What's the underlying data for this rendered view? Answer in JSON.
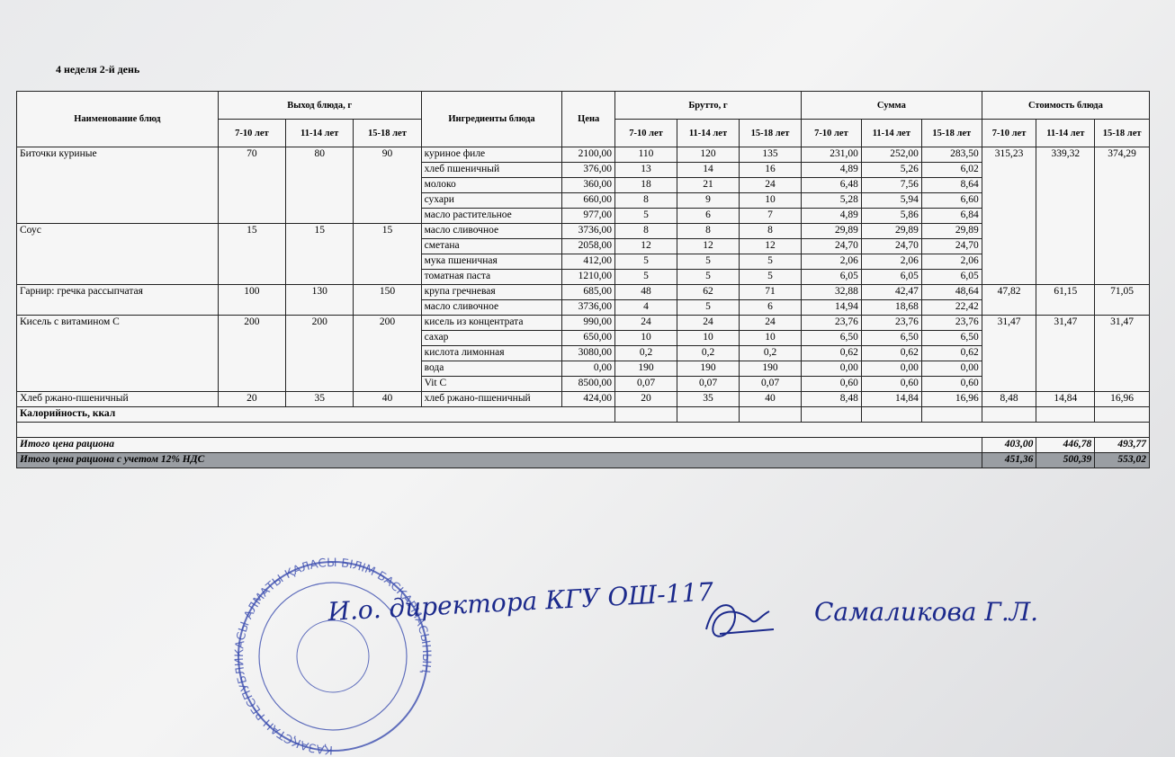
{
  "header": {
    "title": "4 неделя 2-й день"
  },
  "table": {
    "headers": {
      "name": "Наименование блюд",
      "yield": "Выход блюда, г",
      "ingredients": "Ингредиенты блюда",
      "price": "Цена",
      "brutto": "Брутто, г",
      "sum": "Сумма",
      "cost": "Стоимость блюда"
    },
    "age_groups": [
      "7-10 лет",
      "11-14 лет",
      "15-18 лет"
    ],
    "dishes": [
      {
        "name": "Биточки куриные",
        "yield": [
          "70",
          "80",
          "90"
        ],
        "cost": [
          "315,23",
          "339,32",
          "374,29"
        ],
        "ingredients": [
          {
            "name": "куриное филе",
            "price": "2100,00",
            "brutto": [
              "110",
              "120",
              "135"
            ],
            "sum": [
              "231,00",
              "252,00",
              "283,50"
            ]
          },
          {
            "name": "хлеб пшеничный",
            "price": "376,00",
            "brutto": [
              "13",
              "14",
              "16"
            ],
            "sum": [
              "4,89",
              "5,26",
              "6,02"
            ]
          },
          {
            "name": "молоко",
            "price": "360,00",
            "brutto": [
              "18",
              "21",
              "24"
            ],
            "sum": [
              "6,48",
              "7,56",
              "8,64"
            ]
          },
          {
            "name": "сухари",
            "price": "660,00",
            "brutto": [
              "8",
              "9",
              "10"
            ],
            "sum": [
              "5,28",
              "5,94",
              "6,60"
            ]
          },
          {
            "name": "масло растительное",
            "price": "977,00",
            "brutto": [
              "5",
              "6",
              "7"
            ],
            "sum": [
              "4,89",
              "5,86",
              "6,84"
            ]
          }
        ]
      },
      {
        "name": "Соус",
        "yield": [
          "15",
          "15",
          "15"
        ],
        "ingredients": [
          {
            "name": "масло сливочное",
            "price": "3736,00",
            "brutto": [
              "8",
              "8",
              "8"
            ],
            "sum": [
              "29,89",
              "29,89",
              "29,89"
            ]
          },
          {
            "name": "сметана",
            "price": "2058,00",
            "brutto": [
              "12",
              "12",
              "12"
            ],
            "sum": [
              "24,70",
              "24,70",
              "24,70"
            ]
          },
          {
            "name": "мука пшеничная",
            "price": "412,00",
            "brutto": [
              "5",
              "5",
              "5"
            ],
            "sum": [
              "2,06",
              "2,06",
              "2,06"
            ]
          },
          {
            "name": "томатная паста",
            "price": "1210,00",
            "brutto": [
              "5",
              "5",
              "5"
            ],
            "sum": [
              "6,05",
              "6,05",
              "6,05"
            ]
          }
        ]
      },
      {
        "name": "Гарнир: гречка рассыпчатая",
        "yield": [
          "100",
          "130",
          "150"
        ],
        "cost": [
          "47,82",
          "61,15",
          "71,05"
        ],
        "ingredients": [
          {
            "name": "крупа гречневая",
            "price": "685,00",
            "brutto": [
              "48",
              "62",
              "71"
            ],
            "sum": [
              "32,88",
              "42,47",
              "48,64"
            ]
          },
          {
            "name": "масло сливочное",
            "price": "3736,00",
            "brutto": [
              "4",
              "5",
              "6"
            ],
            "sum": [
              "14,94",
              "18,68",
              "22,42"
            ]
          }
        ]
      },
      {
        "name": "Кисель с витамином С",
        "yield": [
          "200",
          "200",
          "200"
        ],
        "cost": [
          "31,47",
          "31,47",
          "31,47"
        ],
        "ingredients": [
          {
            "name": "кисель из концентрата",
            "price": "990,00",
            "brutto": [
              "24",
              "24",
              "24"
            ],
            "sum": [
              "23,76",
              "23,76",
              "23,76"
            ]
          },
          {
            "name": "сахар",
            "price": "650,00",
            "brutto": [
              "10",
              "10",
              "10"
            ],
            "sum": [
              "6,50",
              "6,50",
              "6,50"
            ]
          },
          {
            "name": "кислота лимонная",
            "price": "3080,00",
            "brutto": [
              "0,2",
              "0,2",
              "0,2"
            ],
            "sum": [
              "0,62",
              "0,62",
              "0,62"
            ]
          },
          {
            "name": "вода",
            "price": "0,00",
            "brutto": [
              "190",
              "190",
              "190"
            ],
            "sum": [
              "0,00",
              "0,00",
              "0,00"
            ]
          },
          {
            "name": "Vit C",
            "price": "8500,00",
            "brutto": [
              "0,07",
              "0,07",
              "0,07"
            ],
            "sum": [
              "0,60",
              "0,60",
              "0,60"
            ]
          }
        ]
      },
      {
        "name": "Хлеб ржано-пшеничный",
        "yield": [
          "20",
          "35",
          "40"
        ],
        "cost": [
          "8,48",
          "14,84",
          "16,96"
        ],
        "ingredients": [
          {
            "name": "хлеб ржано-пшеничный",
            "price": "424,00",
            "brutto": [
              "20",
              "35",
              "40"
            ],
            "sum": [
              "8,48",
              "14,84",
              "16,96"
            ]
          }
        ]
      }
    ],
    "calories": {
      "label": "Калорийность, ккал"
    },
    "total": {
      "label": "Итого цена рациона",
      "values": [
        "403,00",
        "446,78",
        "493,77"
      ]
    },
    "total_vat": {
      "label": "Итого цена рациона с учетом 12% НДС",
      "values": [
        "451,36",
        "500,39",
        "553,02"
      ]
    }
  },
  "signature": {
    "position": "И.о. директора КГУ ОШ-117",
    "name": "Самаликова Г.Л."
  },
  "stamp": {
    "outer": "ҚАЗАҚСТАН РЕСПУБЛИКАСЫ АЛМАТЫ ҚАЛАСЫ БІЛІМ БАСҚАРМАСЫНЫҢ"
  }
}
